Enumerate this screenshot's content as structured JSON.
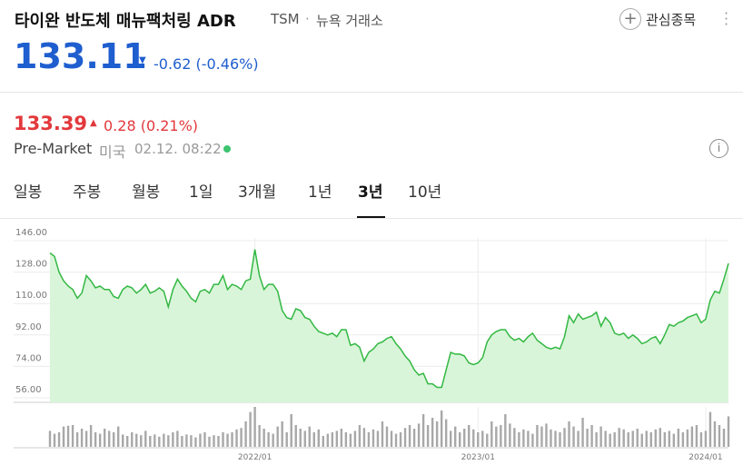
{
  "header": {
    "title": "타이완 반도체 매뉴팩처링 ADR",
    "ticker": "TSM",
    "separator": "·",
    "exchange": "뉴욕 거래소",
    "watch": "관심종목"
  },
  "quote": {
    "price": "133.11",
    "change": "-0.62 (-0.46%)"
  },
  "premarket": {
    "price": "133.39",
    "change": "0.28 (0.21%)",
    "label": "Pre-Market",
    "region": "미국",
    "time": "02.12. 08:22"
  },
  "tabs": [
    "일봉",
    "주봉",
    "월봉",
    "1일",
    "3개월",
    "1년",
    "3년",
    "10년"
  ],
  "active_tab": "3년",
  "chart_data": {
    "type": "line",
    "color": "#33b843",
    "fill": "#d9f5d9",
    "volume_color": "#a8a8a8",
    "grid": true,
    "categories": [
      null,
      null,
      null,
      null,
      null,
      null,
      null,
      null,
      null,
      null,
      null,
      null,
      null,
      null,
      null,
      null,
      null,
      null,
      null,
      null,
      null,
      null,
      null,
      null,
      null,
      null,
      null,
      null,
      null,
      null,
      null,
      null,
      null,
      null,
      null,
      null,
      null,
      null,
      null,
      null,
      null,
      null,
      null,
      null,
      null,
      "2022/01",
      null,
      null,
      null,
      null,
      null,
      null,
      null,
      null,
      null,
      null,
      null,
      null,
      null,
      null,
      null,
      null,
      null,
      null,
      null,
      null,
      null,
      null,
      null,
      null,
      null,
      null,
      null,
      null,
      null,
      null,
      null,
      null,
      null,
      null,
      null,
      null,
      null,
      null,
      null,
      null,
      null,
      null,
      null,
      null,
      null,
      null,
      null,
      null,
      "2023/01",
      null,
      null,
      null,
      null,
      null,
      null,
      null,
      null,
      null,
      null,
      null,
      null,
      null,
      null,
      null,
      null,
      null,
      null,
      null,
      null,
      null,
      null,
      null,
      null,
      null,
      null,
      null,
      null,
      null,
      null,
      null,
      null,
      null,
      null,
      null,
      null,
      null,
      null,
      null,
      null,
      null,
      null,
      null,
      null,
      null,
      null,
      null,
      null,
      null,
      "2024/01",
      null,
      null,
      null,
      null,
      null
    ],
    "values": [
      139,
      137,
      128,
      123,
      120,
      118,
      113,
      116,
      126,
      123,
      119,
      120,
      118,
      118,
      114,
      113,
      118,
      120,
      119,
      116,
      118,
      121,
      116,
      117,
      119,
      117,
      108,
      118,
      124,
      120,
      117,
      113,
      111,
      117,
      118,
      116,
      121,
      121,
      126,
      118,
      121,
      120,
      118,
      123,
      124,
      141,
      126,
      118,
      121,
      121,
      117,
      106,
      102,
      101,
      107,
      106,
      102,
      101,
      97,
      94,
      93,
      92,
      93,
      91,
      95,
      95,
      86,
      87,
      85,
      77,
      82,
      84,
      87,
      88,
      90,
      91,
      87,
      84,
      80,
      77,
      72,
      69,
      70,
      64,
      64,
      62,
      62,
      72,
      82,
      81,
      81,
      80,
      76,
      75,
      76,
      79,
      88,
      92,
      94,
      95,
      95,
      91,
      89,
      90,
      88,
      91,
      93,
      89,
      87,
      85,
      84,
      85,
      84,
      91,
      103,
      99,
      104,
      101,
      102,
      103,
      105,
      97,
      102,
      99,
      93,
      92,
      93,
      90,
      92,
      90,
      87,
      88,
      90,
      91,
      87,
      92,
      98,
      97,
      99,
      100,
      102,
      103,
      104,
      99,
      101,
      112,
      117,
      116,
      124,
      133
    ],
    "volume": [
      22,
      18,
      20,
      28,
      29,
      30,
      20,
      25,
      22,
      30,
      20,
      18,
      25,
      22,
      20,
      28,
      17,
      15,
      20,
      18,
      16,
      22,
      15,
      17,
      14,
      18,
      16,
      20,
      22,
      15,
      17,
      16,
      13,
      18,
      20,
      14,
      16,
      15,
      20,
      18,
      20,
      24,
      26,
      35,
      48,
      55,
      30,
      25,
      20,
      18,
      28,
      35,
      20,
      45,
      30,
      25,
      22,
      28,
      20,
      24,
      15,
      18,
      20,
      22,
      25,
      20,
      18,
      22,
      30,
      26,
      20,
      24,
      22,
      35,
      28,
      22,
      18,
      20,
      26,
      30,
      25,
      32,
      45,
      30,
      40,
      35,
      50,
      38,
      22,
      28,
      20,
      25,
      30,
      24,
      20,
      22,
      18,
      35,
      28,
      30,
      45,
      32,
      26,
      20,
      24,
      22,
      18,
      30,
      28,
      32,
      24,
      22,
      20,
      26,
      35,
      28,
      22,
      40,
      25,
      30,
      20,
      28,
      22,
      18,
      20,
      26,
      24,
      20,
      22,
      25,
      18,
      22,
      20,
      24,
      26,
      20,
      22,
      18,
      25,
      20,
      24,
      28,
      30,
      20,
      22,
      48,
      35,
      30,
      25,
      42
    ],
    "ylim": [
      56,
      146
    ],
    "yticks": [
      {
        "value": 146,
        "label": "146.00"
      },
      {
        "value": 128,
        "label": "128.00"
      },
      {
        "value": 110,
        "label": "110.00"
      },
      {
        "value": 92,
        "label": "92.00"
      },
      {
        "value": 74,
        "label": "74.00"
      },
      {
        "value": 56,
        "label": "56.00"
      }
    ]
  }
}
